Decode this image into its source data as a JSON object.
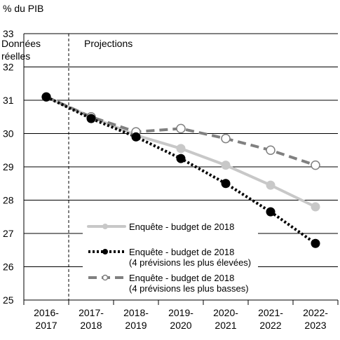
{
  "chart_data": {
    "type": "line",
    "unit_label": "% du PIB",
    "ylim": [
      25,
      33
    ],
    "yticks": [
      25,
      26,
      27,
      28,
      29,
      30,
      31,
      32,
      33
    ],
    "categories": [
      [
        "2016-",
        "2017"
      ],
      [
        "2017-",
        "2018"
      ],
      [
        "2018-",
        "2019"
      ],
      [
        "2019-",
        "2020"
      ],
      [
        "2020-",
        "2021"
      ],
      [
        "2021-",
        "2022"
      ],
      [
        "2022-",
        "2023"
      ]
    ],
    "regions": {
      "actual": [
        "Données",
        "réelles"
      ],
      "projection": [
        "Projections"
      ]
    },
    "series": [
      {
        "id": "mid",
        "legend": [
          "Enquête - budget de 2018"
        ],
        "color": "#c8c8c8",
        "style": "solid",
        "marker": "filled-light",
        "values": [
          31.1,
          30.5,
          29.95,
          29.55,
          29.05,
          28.45,
          27.8
        ]
      },
      {
        "id": "high",
        "legend": [
          "Enquête - budget de 2018",
          "(4 prévisions les plus élevées)"
        ],
        "color": "#000000",
        "style": "dotted",
        "marker": "filled-black",
        "values": [
          31.1,
          30.45,
          29.9,
          29.25,
          28.5,
          27.65,
          26.7
        ]
      },
      {
        "id": "low",
        "legend": [
          "Enquête - budget de 2018",
          "(4 prévisions les plus basses)"
        ],
        "color": "#808080",
        "style": "dashed",
        "marker": "hollow",
        "values": [
          31.1,
          30.5,
          30.05,
          30.15,
          29.85,
          29.5,
          29.05
        ]
      }
    ]
  }
}
